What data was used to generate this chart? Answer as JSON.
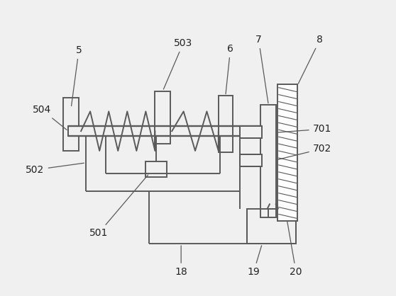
{
  "bg_color": "#f0f0f0",
  "line_color": "#5a5a5a",
  "lw": 1.4,
  "fig_w": 5.58,
  "fig_h": 4.18,
  "dpi": 100
}
